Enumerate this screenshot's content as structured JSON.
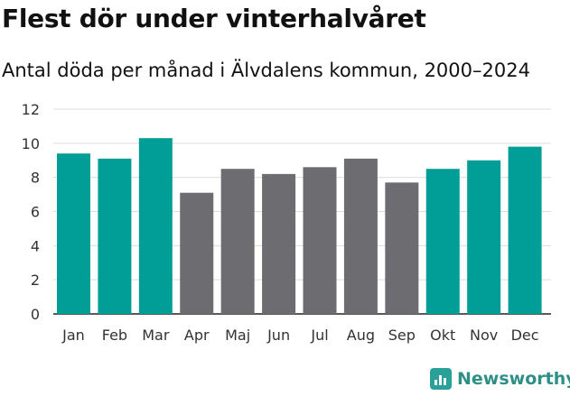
{
  "chart_data": {
    "type": "bar",
    "title": "Flest dör under vinterhalvåret",
    "subtitle": "Antal döda per månad i Älvdalens kommun, 2000–2024",
    "categories": [
      "Jan",
      "Feb",
      "Mar",
      "Apr",
      "Maj",
      "Jun",
      "Jul",
      "Aug",
      "Sep",
      "Okt",
      "Nov",
      "Dec"
    ],
    "values": [
      9.4,
      9.1,
      10.3,
      7.1,
      8.5,
      8.2,
      8.6,
      9.1,
      7.7,
      8.5,
      9.0,
      9.8
    ],
    "highlight": [
      true,
      true,
      true,
      false,
      false,
      false,
      false,
      false,
      false,
      true,
      true,
      true
    ],
    "ylim": [
      0,
      12
    ],
    "yticks": [
      0,
      2,
      4,
      6,
      8,
      10,
      12
    ],
    "xlabel": "",
    "ylabel": "",
    "grid": true,
    "colors": {
      "highlight": "#009e96",
      "default": "#6d6c70"
    }
  },
  "brand": {
    "name": "Newsworthy"
  }
}
